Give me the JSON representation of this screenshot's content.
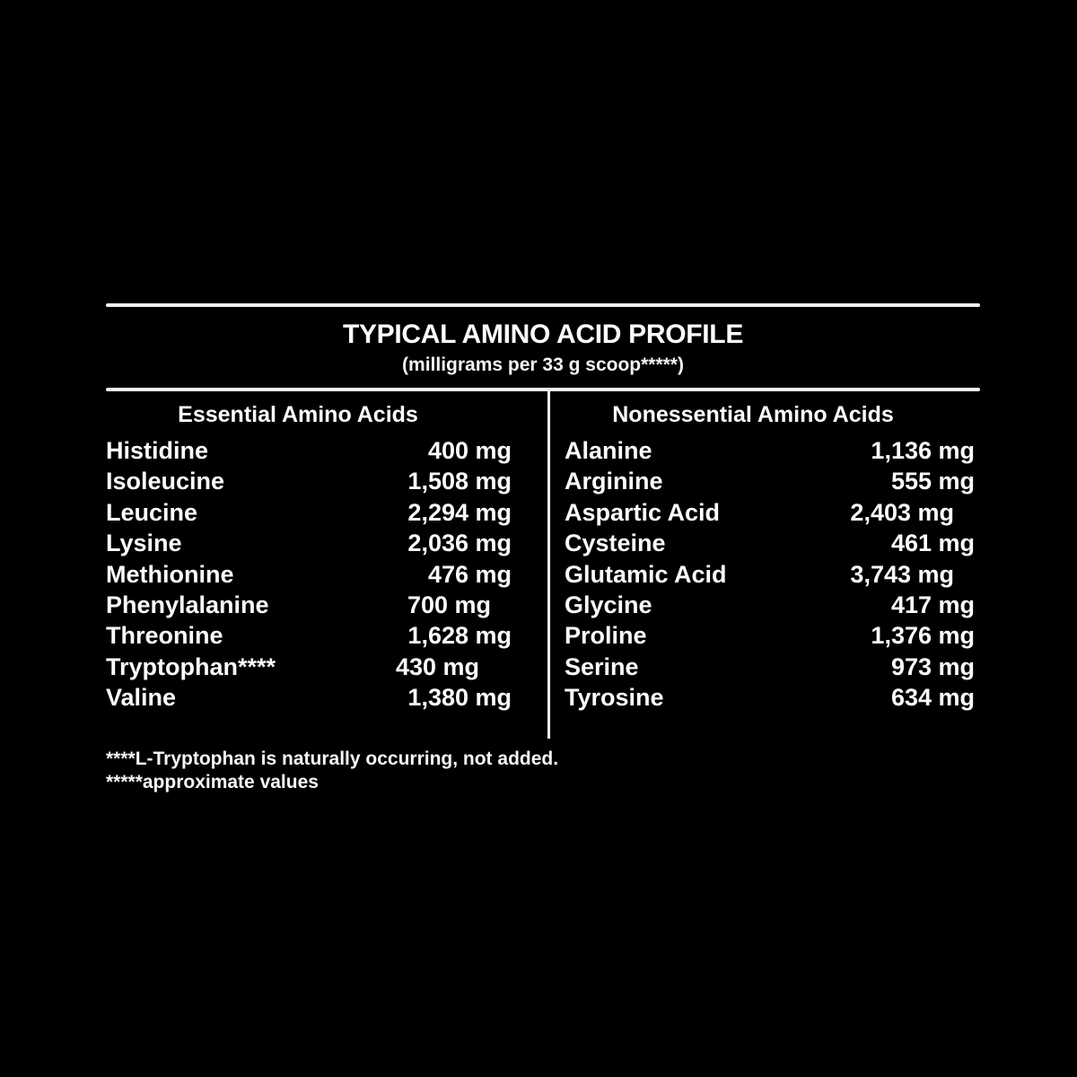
{
  "label": {
    "title": "TYPICAL AMINO ACID PROFILE",
    "subtitle": "(milligrams per 33 g scoop*****)",
    "essential": {
      "header": "Essential Amino Acids",
      "rows": [
        {
          "name": "Histidine",
          "value": "400 mg"
        },
        {
          "name": "Isoleucine",
          "value": "1,508 mg"
        },
        {
          "name": "Leucine",
          "value": "2,294 mg"
        },
        {
          "name": "Lysine",
          "value": "2,036 mg"
        },
        {
          "name": "Methionine",
          "value": "476 mg"
        },
        {
          "name": "Phenylalanine",
          "value": "700 mg"
        },
        {
          "name": "Threonine",
          "value": "1,628 mg"
        },
        {
          "name": "Tryptophan****",
          "value": "430 mg"
        },
        {
          "name": "Valine",
          "value": "1,380 mg"
        }
      ]
    },
    "nonessential": {
      "header": "Nonessential Amino Acids",
      "rows": [
        {
          "name": "Alanine",
          "value": "1,136 mg"
        },
        {
          "name": "Arginine",
          "value": "555 mg"
        },
        {
          "name": "Aspartic Acid",
          "value": "2,403 mg"
        },
        {
          "name": "Cysteine",
          "value": "461 mg"
        },
        {
          "name": "Glutamic Acid",
          "value": "3,743 mg"
        },
        {
          "name": "Glycine",
          "value": "417 mg"
        },
        {
          "name": "Proline",
          "value": "1,376 mg"
        },
        {
          "name": "Serine",
          "value": "973 mg"
        },
        {
          "name": "Tyrosine",
          "value": "634 mg"
        }
      ]
    },
    "footnotes": [
      "****L-Tryptophan is naturally occurring, not added.",
      "*****approximate values"
    ]
  },
  "colors": {
    "background": "#000000",
    "text": "#fbfbfb",
    "rule": "#f2f2f2"
  }
}
